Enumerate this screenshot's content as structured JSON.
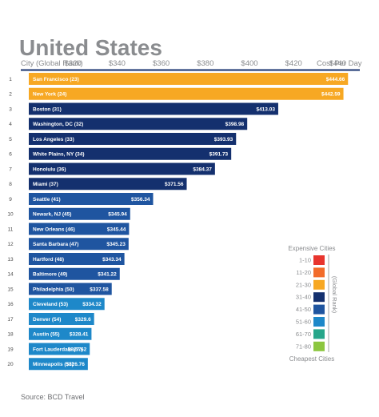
{
  "chart_data": {
    "type": "bar",
    "orientation": "horizontal",
    "title": "United States",
    "category_header": "City (Global Rank)",
    "value_header": "Cost Per Day",
    "x_ticks": [
      "$320",
      "$340",
      "$360",
      "$380",
      "$400",
      "$420",
      "$440"
    ],
    "x_tick_values": [
      320,
      340,
      360,
      380,
      400,
      420,
      440
    ],
    "xlim": [
      300,
      450
    ],
    "rows": [
      {
        "rank": "1",
        "city": "San Francisco (23)",
        "value": 444.66,
        "label": "$444.66",
        "color": "#f7a823"
      },
      {
        "rank": "2",
        "city": "New York (24)",
        "value": 442.59,
        "label": "$442.59",
        "color": "#f7a823"
      },
      {
        "rank": "3",
        "city": "Boston (31)",
        "value": 413.03,
        "label": "$413.03",
        "color": "#14306e"
      },
      {
        "rank": "4",
        "city": "Washington, DC (32)",
        "value": 398.98,
        "label": "$398.98",
        "color": "#14306e"
      },
      {
        "rank": "5",
        "city": "Los Angeles (33)",
        "value": 393.93,
        "label": "$393.93",
        "color": "#14306e"
      },
      {
        "rank": "6",
        "city": "White Plains, NY (34)",
        "value": 391.73,
        "label": "$391.73",
        "color": "#14306e"
      },
      {
        "rank": "7",
        "city": "Honolulu (36)",
        "value": 384.37,
        "label": "$384.37",
        "color": "#14306e"
      },
      {
        "rank": "8",
        "city": "Miami (37)",
        "value": 371.56,
        "label": "$371.56",
        "color": "#14306e"
      },
      {
        "rank": "9",
        "city": "Seattle (41)",
        "value": 356.34,
        "label": "$356.34",
        "color": "#1f55a0"
      },
      {
        "rank": "10",
        "city": "Newark, NJ (45)",
        "value": 345.94,
        "label": "$345.94",
        "color": "#1f55a0"
      },
      {
        "rank": "11",
        "city": "New Orleans (46)",
        "value": 345.44,
        "label": "$345.44",
        "color": "#1f55a0"
      },
      {
        "rank": "12",
        "city": "Santa Barbara (47)",
        "value": 345.23,
        "label": "$345.23",
        "color": "#1f55a0"
      },
      {
        "rank": "13",
        "city": "Hartford (48)",
        "value": 343.34,
        "label": "$343.34",
        "color": "#1f55a0"
      },
      {
        "rank": "14",
        "city": "Baltimore (49)",
        "value": 341.22,
        "label": "$341.22",
        "color": "#1f55a0"
      },
      {
        "rank": "15",
        "city": "Philadelphia (50)",
        "value": 337.58,
        "label": "$337.58",
        "color": "#1f55a0"
      },
      {
        "rank": "16",
        "city": "Cleveland (53)",
        "value": 334.32,
        "label": "$334.32",
        "color": "#1e88c9"
      },
      {
        "rank": "17",
        "city": "Denver (54)",
        "value": 329.6,
        "label": "$329.6",
        "color": "#1e88c9"
      },
      {
        "rank": "18",
        "city": "Austin (55)",
        "value": 328.41,
        "label": "$328.41",
        "color": "#1e88c9"
      },
      {
        "rank": "19",
        "city": "Fort Lauderdale (57)",
        "value": 327.62,
        "label": "$327.62",
        "color": "#1e88c9"
      },
      {
        "rank": "20",
        "city": "Minneapolis (58)",
        "value": 326.76,
        "label": "$326.76",
        "color": "#1e88c9"
      }
    ]
  },
  "legend": {
    "top_label": "Expensive Cities",
    "bottom_label": "Cheapest Cities",
    "side_label": "(Global Rank)",
    "items": [
      {
        "label": "1-10",
        "color": "#e8352e"
      },
      {
        "label": "11-20",
        "color": "#f26c2b"
      },
      {
        "label": "21-30",
        "color": "#f7a823"
      },
      {
        "label": "31-40",
        "color": "#14306e"
      },
      {
        "label": "41-50",
        "color": "#1f55a0"
      },
      {
        "label": "51-60",
        "color": "#1e88c9"
      },
      {
        "label": "61-70",
        "color": "#26a68a"
      },
      {
        "label": "71-80",
        "color": "#8cc63f"
      }
    ]
  },
  "colors": {
    "header_rule": "#14306e",
    "title": "#8a8c8f"
  },
  "source": "Source: BCD Travel"
}
